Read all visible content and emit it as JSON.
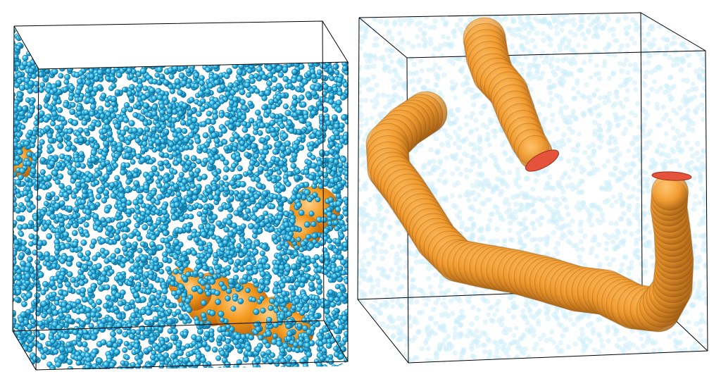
{
  "panels": [
    {
      "name": "left-panel",
      "view": "opaque-particles",
      "particle_color": "#2bb7e6",
      "particle_edge": "#1580a8",
      "pore_color": "#f29a1f"
    },
    {
      "name": "right-panel",
      "view": "transparent-particles",
      "particle_color": "#cfeefa",
      "pore_color": "#f3a53a",
      "pore_cap_color": "#e2563a"
    }
  ],
  "box_edge_color": "#000000"
}
